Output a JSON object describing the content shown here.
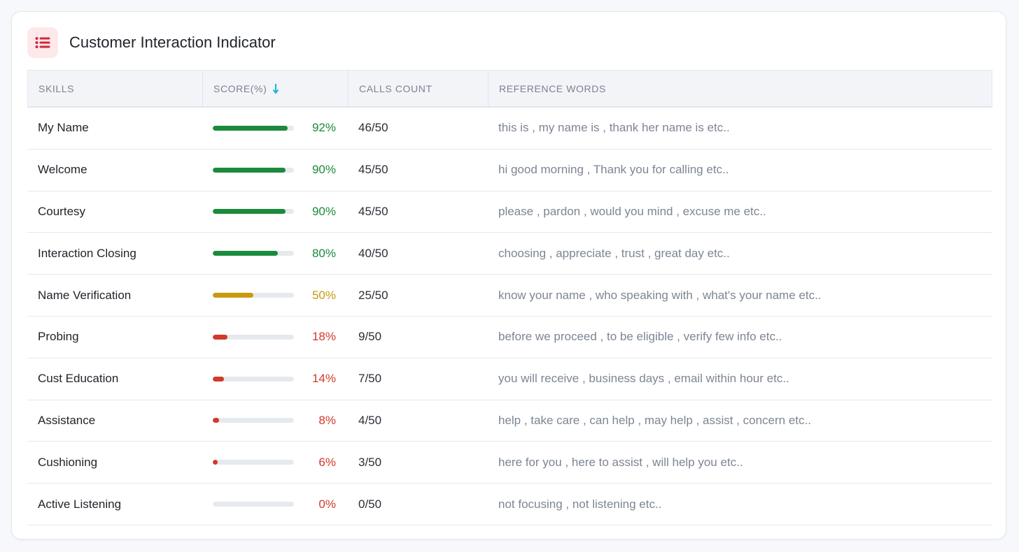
{
  "card": {
    "title": "Customer Interaction Indicator",
    "icon": "list-icon",
    "icon_color": "#d0283a"
  },
  "table": {
    "headers": {
      "skills": "SKILLS",
      "score": "SCORE(%)",
      "calls": "CALLS COUNT",
      "reference": "REFERENCE WORDS"
    },
    "sort_icon": "arrow-down-icon",
    "sort_color": "#16b8d6",
    "colors": {
      "high": "#1b8a3c",
      "mid": "#c99a0c",
      "low": "#d13a2b"
    },
    "rows": [
      {
        "skill": "My Name",
        "score": 92,
        "score_label": "92%",
        "calls": "46/50",
        "reference": "this is , my name is , thank her name is etc..",
        "level": "high"
      },
      {
        "skill": "Welcome",
        "score": 90,
        "score_label": "90%",
        "calls": "45/50",
        "reference": "hi good morning , Thank you for calling etc..",
        "level": "high"
      },
      {
        "skill": "Courtesy",
        "score": 90,
        "score_label": "90%",
        "calls": "45/50",
        "reference": "please , pardon , would you mind , excuse me etc..",
        "level": "high"
      },
      {
        "skill": "Interaction Closing",
        "score": 80,
        "score_label": "80%",
        "calls": "40/50",
        "reference": "choosing , appreciate , trust , great day etc..",
        "level": "high"
      },
      {
        "skill": "Name Verification",
        "score": 50,
        "score_label": "50%",
        "calls": "25/50",
        "reference": "know your name , who speaking with , what's your name etc..",
        "level": "mid"
      },
      {
        "skill": "Probing",
        "score": 18,
        "score_label": "18%",
        "calls": "9/50",
        "reference": "before we proceed , to be eligible , verify few info etc..",
        "level": "low"
      },
      {
        "skill": "Cust Education",
        "score": 14,
        "score_label": "14%",
        "calls": "7/50",
        "reference": "you will receive , business days , email within hour etc..",
        "level": "low"
      },
      {
        "skill": "Assistance",
        "score": 8,
        "score_label": "8%",
        "calls": "4/50",
        "reference": "help , take care , can help , may help , assist , concern etc..",
        "level": "low"
      },
      {
        "skill": "Cushioning",
        "score": 6,
        "score_label": "6%",
        "calls": "3/50",
        "reference": "here for you , here to assist , will help you etc..",
        "level": "low"
      },
      {
        "skill": "Active Listening",
        "score": 0,
        "score_label": "0%",
        "calls": "0/50",
        "reference": "not focusing , not listening etc..",
        "level": "low"
      }
    ]
  }
}
